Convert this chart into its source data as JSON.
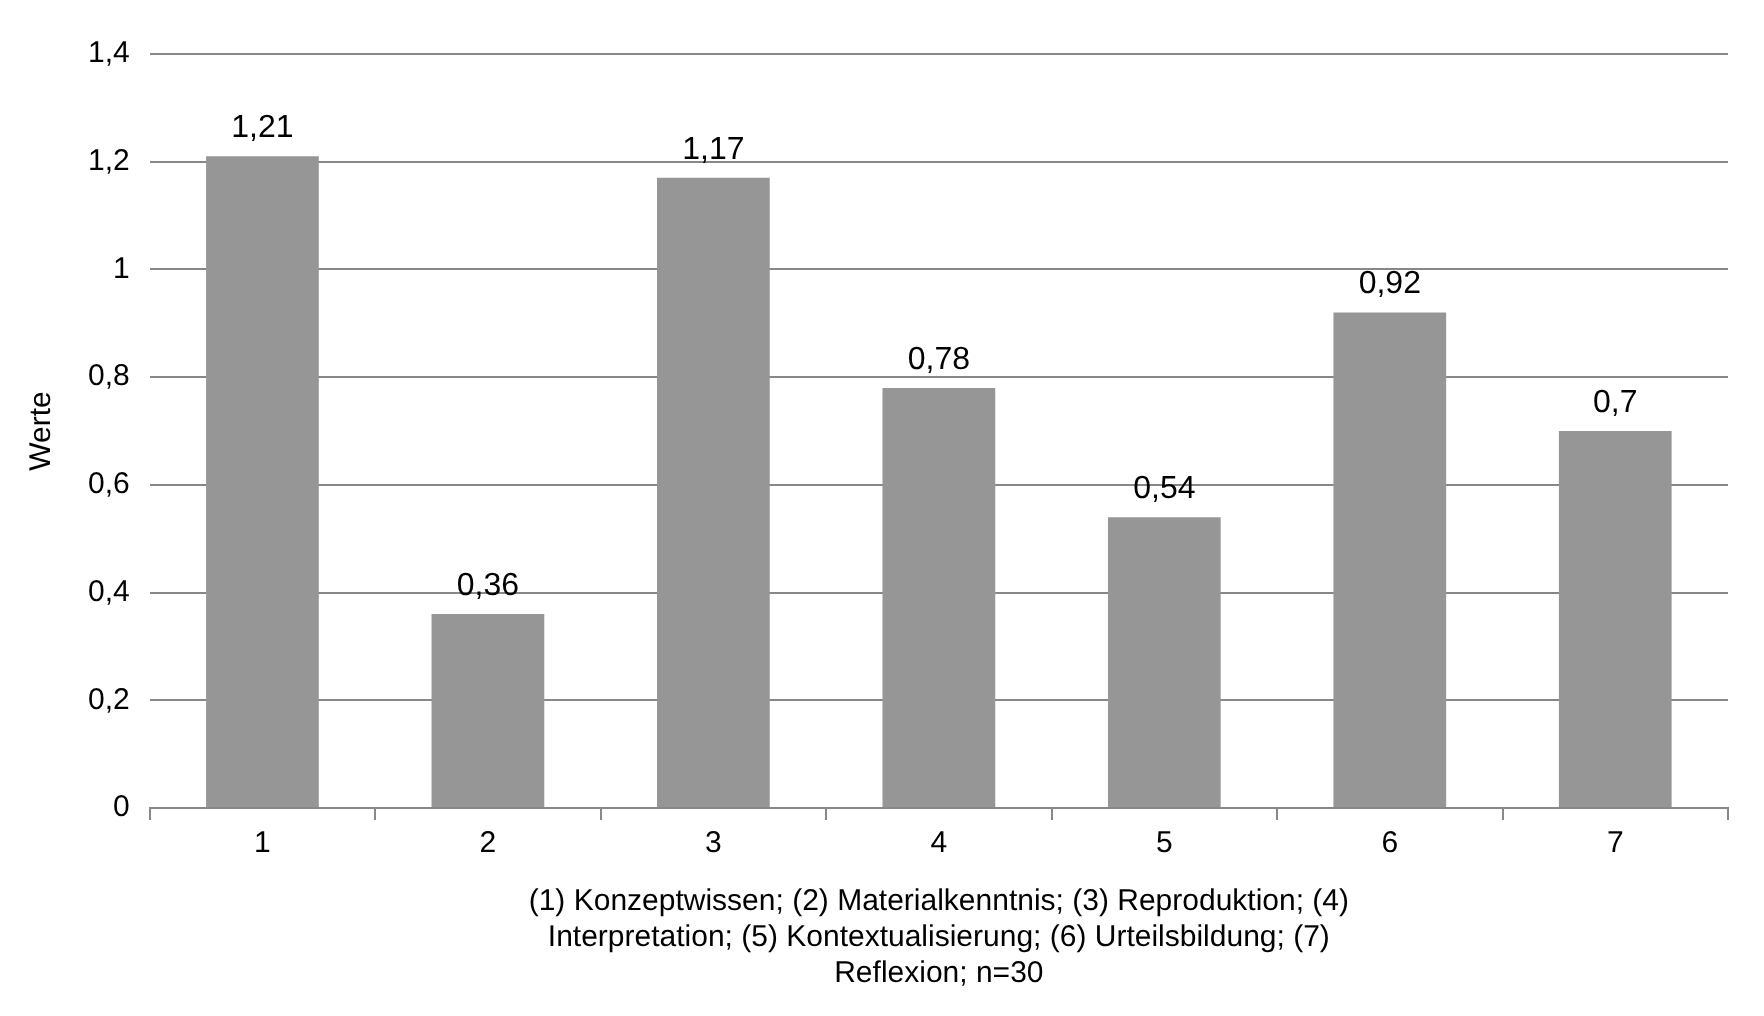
{
  "chart_data": {
    "type": "bar",
    "categories": [
      "1",
      "2",
      "3",
      "4",
      "5",
      "6",
      "7"
    ],
    "values": [
      1.21,
      0.36,
      1.17,
      0.78,
      0.54,
      0.92,
      0.7
    ],
    "value_labels": [
      "1,21",
      "0,36",
      "1,17",
      "0,78",
      "0,54",
      "0,92",
      "0,7"
    ],
    "color": "#969696",
    "ylabel": "Werte",
    "xlabel": "(1) Konzeptwissen; (2) Materialkenntnis; (3) Reproduktion; (4) Interpretation; (5) Kontextualisierung; (6) Urteilsbildung; (7) Reflexion; n=30",
    "ylim": [
      0,
      1.4
    ],
    "yticks": [
      0,
      {
        "value": 0.2,
        "label": "0,2"
      },
      {
        "value": 0.4,
        "label": "0,4"
      },
      {
        "value": 0.6,
        "label": "0,6"
      },
      {
        "value": 0.8,
        "label": "0,8"
      },
      1,
      {
        "value": 1.2,
        "label": "1,2"
      },
      {
        "value": 1.4,
        "label": "1,4"
      }
    ],
    "grid": "y",
    "legend": false
  }
}
